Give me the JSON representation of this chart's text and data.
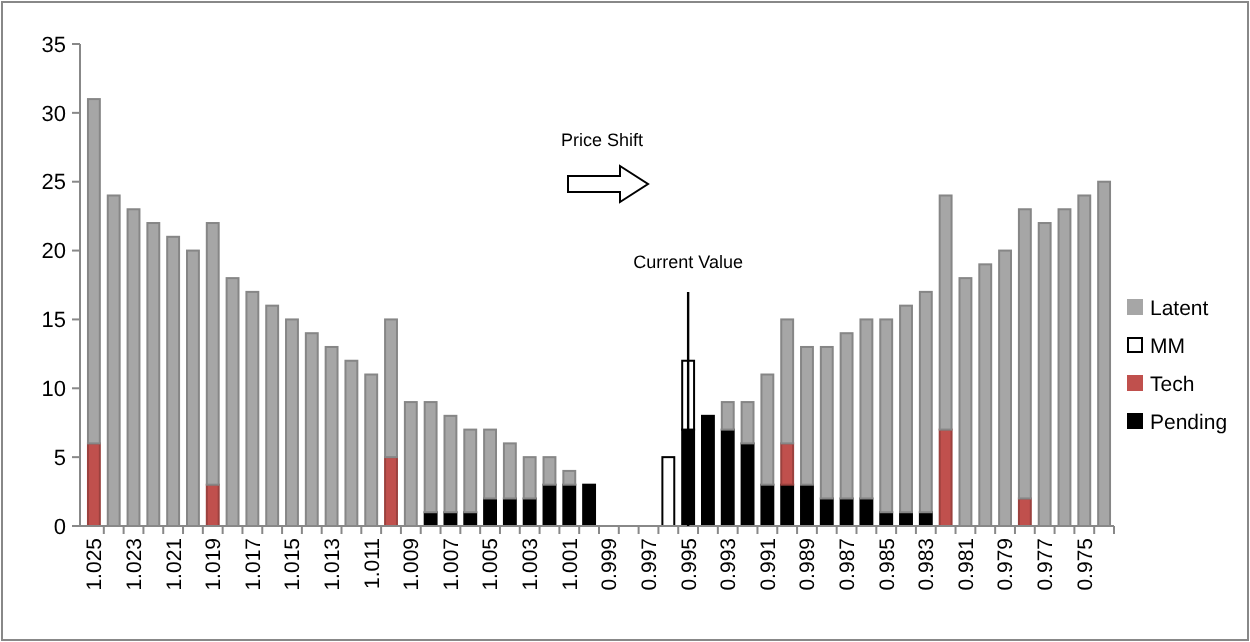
{
  "chart_data": {
    "type": "bar",
    "stacked": true,
    "categories": [
      "1.025",
      null,
      "1.023",
      null,
      "1.021",
      null,
      "1.019",
      null,
      "1.017",
      null,
      "1.015",
      null,
      "1.013",
      null,
      "1.011",
      null,
      "1.009",
      null,
      "1.007",
      null,
      "1.005",
      null,
      "1.003",
      null,
      "1.001",
      null,
      "0.999",
      null,
      "0.997",
      null,
      "0.995",
      null,
      "0.993",
      null,
      "0.991",
      null,
      "0.989",
      null,
      "0.987",
      null,
      "0.985",
      null,
      "0.983",
      null,
      "0.981",
      null,
      "0.979",
      null,
      "0.977",
      null,
      "0.975",
      null
    ],
    "series": [
      {
        "name": "Pending",
        "color": "#000000",
        "values": [
          0,
          0,
          0,
          0,
          0,
          0,
          0,
          0,
          0,
          0,
          0,
          0,
          0,
          0,
          0,
          0,
          0,
          1,
          1,
          1,
          2,
          2,
          2,
          3,
          3,
          3,
          0,
          0,
          0,
          0,
          7,
          8,
          7,
          6,
          3,
          3,
          3,
          2,
          2,
          2,
          1,
          1,
          1,
          0,
          0,
          0,
          0,
          0,
          0,
          0,
          0,
          0
        ]
      },
      {
        "name": "Tech",
        "color": "#c0504d",
        "values": [
          6,
          0,
          0,
          0,
          0,
          0,
          3,
          0,
          0,
          0,
          0,
          0,
          0,
          0,
          0,
          5,
          0,
          0,
          0,
          0,
          0,
          0,
          0,
          0,
          0,
          0,
          0,
          0,
          0,
          0,
          0,
          0,
          0,
          0,
          0,
          3,
          0,
          0,
          0,
          0,
          0,
          0,
          0,
          7,
          0,
          0,
          0,
          2,
          0,
          0,
          0,
          0
        ]
      },
      {
        "name": "MM",
        "color": "#ffffff",
        "values": [
          0,
          0,
          0,
          0,
          0,
          0,
          0,
          0,
          0,
          0,
          0,
          0,
          0,
          0,
          0,
          0,
          0,
          0,
          0,
          0,
          0,
          0,
          0,
          0,
          0,
          0,
          0,
          0,
          0,
          5,
          5,
          0,
          0,
          0,
          0,
          0,
          0,
          0,
          0,
          0,
          0,
          0,
          0,
          0,
          0,
          0,
          0,
          0,
          0,
          0,
          0,
          0
        ]
      },
      {
        "name": "Latent",
        "color": "#a6a6a6",
        "values": [
          25,
          24,
          23,
          22,
          21,
          20,
          19,
          18,
          17,
          16,
          15,
          14,
          13,
          12,
          11,
          10,
          9,
          8,
          7,
          6,
          5,
          4,
          3,
          2,
          1,
          0,
          0,
          0,
          0,
          0,
          0,
          0,
          2,
          3,
          8,
          9,
          10,
          11,
          12,
          13,
          14,
          15,
          16,
          17,
          18,
          19,
          20,
          21,
          22,
          23,
          24,
          25
        ]
      }
    ],
    "ylim": [
      0,
      35
    ],
    "yticks": [
      0,
      5,
      10,
      15,
      20,
      25,
      30,
      35
    ],
    "grid": false,
    "legend": "right",
    "annotations": [
      "Price Shift"
    ],
    "ref_lines": [
      {
        "axis": "x",
        "value": "0.995",
        "label": "Current Value",
        "color": "#000000"
      }
    ]
  }
}
